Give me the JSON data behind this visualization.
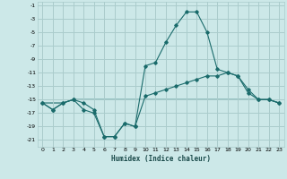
{
  "xlabel": "Humidex (Indice chaleur)",
  "bg_color": "#cce8e8",
  "grid_color": "#aacccc",
  "line_color": "#1a6b6b",
  "x": [
    0,
    1,
    2,
    3,
    4,
    5,
    6,
    7,
    8,
    9,
    10,
    11,
    12,
    13,
    14,
    15,
    16,
    17,
    18,
    19,
    20,
    21,
    22,
    23
  ],
  "line1": [
    -15.5,
    -16.5,
    -15.5,
    -15.0,
    -16.5,
    -17.0,
    -20.5,
    -20.5,
    -18.5,
    -19.0,
    -10.0,
    -9.5,
    -6.5,
    -4.0,
    -2.0,
    -2.0,
    -5.0,
    -10.5,
    -11.0,
    -11.5,
    -14.0,
    -15.0,
    -15.0,
    -15.5
  ],
  "line2": [
    -15.5,
    -16.5,
    -15.5,
    -15.0,
    -15.5,
    -16.5,
    -20.5,
    -20.5,
    -18.5,
    -19.0,
    -14.5,
    -14.0,
    -13.5,
    -13.0,
    -12.5,
    -12.0,
    -11.5,
    -11.5,
    -11.0,
    -11.5,
    -13.5,
    -15.0,
    -15.0,
    -15.5
  ],
  "line3": [
    -15.5,
    -15.5,
    -15.5,
    -15.0,
    -15.0,
    -15.0,
    -15.0,
    -15.0,
    -15.0,
    -15.0,
    -15.0,
    -15.0,
    -15.0,
    -15.0,
    -15.0,
    -15.0,
    -15.0,
    -15.0,
    -15.0,
    -15.0,
    -15.0,
    -15.0,
    -15.0,
    -15.5
  ],
  "ylim": [
    -22,
    -0.5
  ],
  "xlim": [
    -0.5,
    23.5
  ],
  "yticks": [
    -1,
    -3,
    -5,
    -7,
    -9,
    -11,
    -13,
    -15,
    -17,
    -19,
    -21
  ],
  "xticks": [
    0,
    1,
    2,
    3,
    4,
    5,
    6,
    7,
    8,
    9,
    10,
    11,
    12,
    13,
    14,
    15,
    16,
    17,
    18,
    19,
    20,
    21,
    22,
    23
  ]
}
